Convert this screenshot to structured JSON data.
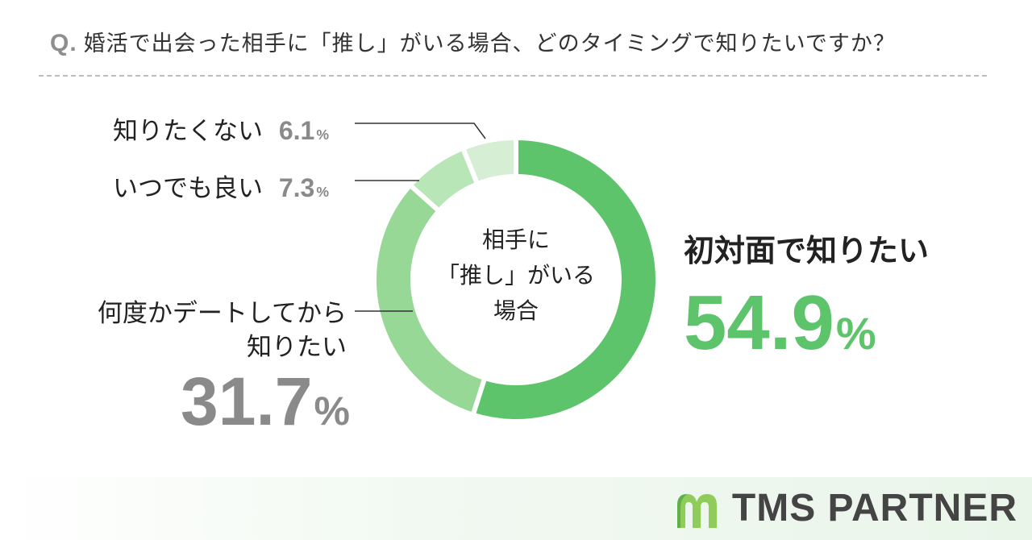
{
  "question": {
    "prefix": "Q.",
    "text": "婚活で出会った相手に「推し」がいる場合、どのタイミングで知りたいですか？"
  },
  "center_label": [
    "相手に",
    "「推し」がいる",
    "場合"
  ],
  "brand": {
    "name": "TMS PARTNER",
    "logo_icon": "m-leaf-logo-icon"
  },
  "colors": {
    "main_slice": "#5ec46b",
    "second_slice": "#97d896",
    "third_slice": "#b9e6b7",
    "fourth_slice": "#d6efd4",
    "highlight_text": "#5ec46b",
    "muted_text": "#8a8a8a"
  },
  "chart_data": {
    "type": "pie",
    "categories": [
      "初対面で知りたい",
      "何度かデートしてから知りたい",
      "いつでも良い",
      "知りたくない"
    ],
    "values": [
      54.9,
      31.7,
      7.3,
      6.1
    ],
    "unit": "%",
    "title": "",
    "donut": true
  }
}
